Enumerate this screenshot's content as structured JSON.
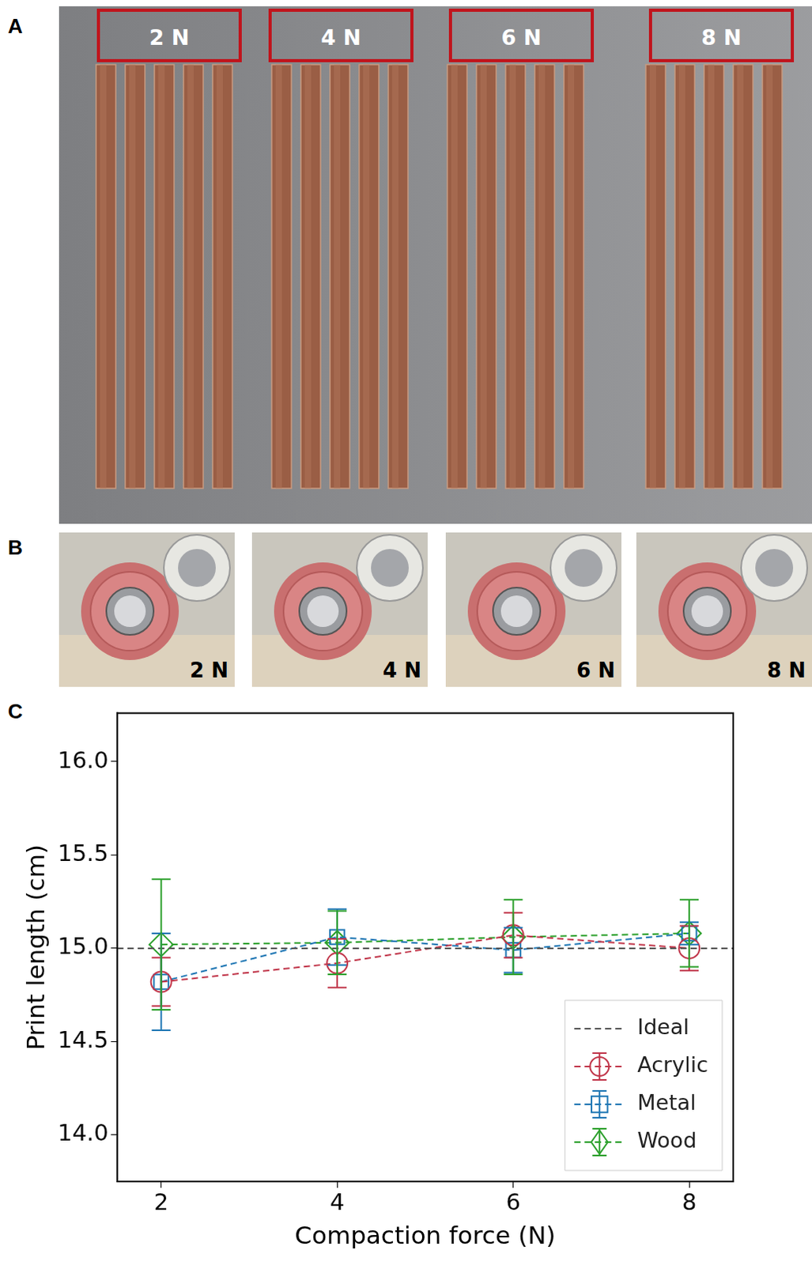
{
  "panel_letters": [
    "A",
    "B",
    "C"
  ],
  "panel_a": {
    "labels": [
      "2 N",
      "4 N",
      "6 N",
      "8 N"
    ]
  },
  "panel_b": {
    "labels": [
      "2 N",
      "4 N",
      "6 N",
      "8 N"
    ]
  },
  "chart_data": {
    "type": "line",
    "x_label": "Compaction force (N)",
    "y_label": "Print length (cm)",
    "x": [
      2,
      4,
      6,
      8
    ],
    "xlim": [
      1.5,
      8.5
    ],
    "xticks": [
      2,
      4,
      6,
      8
    ],
    "ylim": [
      13.75,
      16.26
    ],
    "yticks": [
      {
        "value": 14,
        "label": "14.0"
      },
      {
        "value": 14.5,
        "label": "14.5"
      },
      {
        "value": 15,
        "label": "15.0"
      },
      {
        "value": 15.5,
        "label": "15.5"
      },
      {
        "value": 16,
        "label": "16.0"
      }
    ],
    "grid": false,
    "legend": "lower right",
    "reference": {
      "name": "Ideal",
      "value": 15,
      "color": "#555555",
      "line_style": "dashed"
    },
    "series": [
      {
        "name": "Acrylic",
        "color": "#c1374b",
        "marker": "circle",
        "line_style": "dashed",
        "values": [
          14.82,
          14.92,
          15.07,
          15.0
        ],
        "errors": [
          0.13,
          0.13,
          0.12,
          0.12
        ]
      },
      {
        "name": "Metal",
        "color": "#1f77b4",
        "marker": "square",
        "line_style": "dashed",
        "values": [
          14.82,
          15.06,
          14.99,
          15.08
        ],
        "errors": [
          0.26,
          0.15,
          0.12,
          0.06
        ]
      },
      {
        "name": "Wood",
        "color": "#2ca02c",
        "marker": "diamond",
        "line_style": "dashed",
        "values": [
          15.02,
          15.03,
          15.06,
          15.08
        ],
        "errors": [
          0.35,
          0.17,
          0.2,
          0.18
        ]
      }
    ]
  }
}
